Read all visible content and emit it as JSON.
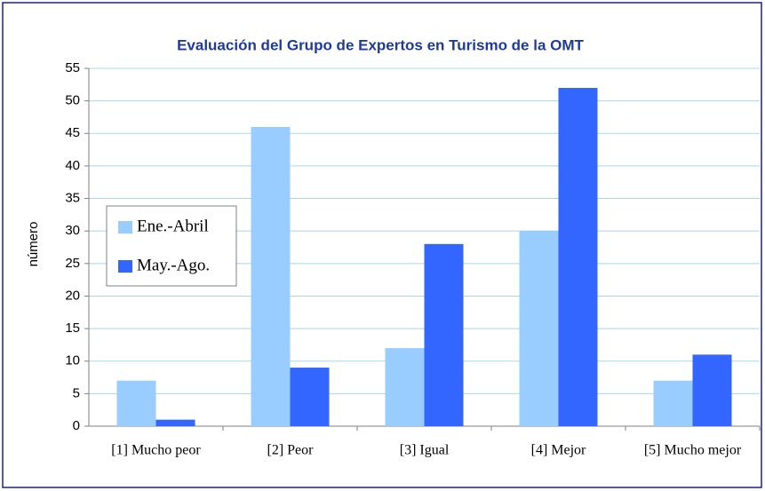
{
  "chart_data": {
    "type": "bar",
    "title": "Evaluación del Grupo de Expertos en Turismo de la OMT",
    "y_label": "número",
    "categories": [
      "[1] Mucho peor",
      "[2] Peor",
      "[3] Igual",
      "[4] Mejor",
      "[5] Mucho mejor"
    ],
    "series": [
      {
        "name": "Ene.-Abril",
        "color": "#99ccff",
        "values": [
          7,
          46,
          12,
          30,
          7
        ]
      },
      {
        "name": "May.-Ago.",
        "color": "#3366ff",
        "values": [
          1,
          9,
          28,
          52,
          11
        ]
      }
    ],
    "ylim": [
      0,
      55
    ],
    "yticks": [
      0,
      5,
      10,
      15,
      20,
      25,
      30,
      35,
      40,
      45,
      50,
      55
    ],
    "grid": true,
    "legend": "left"
  }
}
